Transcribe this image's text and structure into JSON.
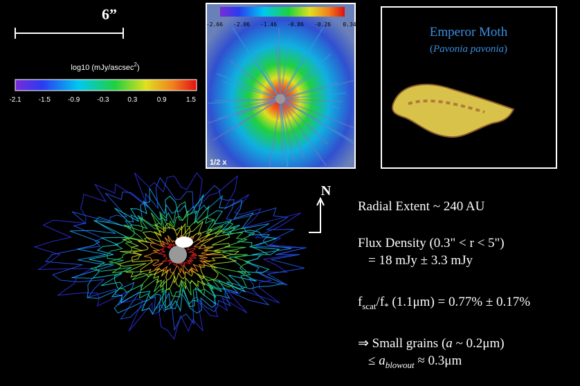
{
  "scale_bar": {
    "label": "6”"
  },
  "colorbar": {
    "label_main": "log10 (mJy/ascsec",
    "label_sup": "2",
    "label_end": ")",
    "ticks": [
      "-2.1",
      "-1.5",
      "-0.9",
      "-0.3",
      "0.3",
      "0.9",
      "1.5"
    ]
  },
  "inset": {
    "ticks": [
      "-2.66",
      "-2.06",
      "-1.46",
      "-0.86",
      "-0.26",
      "0.34"
    ],
    "caption": "1/2 x"
  },
  "moth": {
    "title": "Emperor Moth",
    "paren_open": "(",
    "species": "Pavonia pavonia",
    "paren_close": ")"
  },
  "compass": {
    "label": "N"
  },
  "notes": {
    "radial": "Radial Extent ~ 240 AU",
    "flux_line1": "Flux Density (0.3\" < r < 5\")",
    "flux_line2": "= 18 mJy ± 3.3 mJy",
    "ratio": {
      "f1": "f",
      "sub1": "scat",
      "f2": "/f",
      "sub2": "*",
      "rest": " (1.1μm) = 0.77% ± 0.17%"
    },
    "grains1": {
      "start": "⇒ Small grains (",
      "a": "a",
      "end": " ~ 0.2μm)"
    },
    "grains2": {
      "start": "≤ ",
      "a": "a",
      "sub": "blowout",
      "end": " ≈ 0.3μm"
    }
  }
}
